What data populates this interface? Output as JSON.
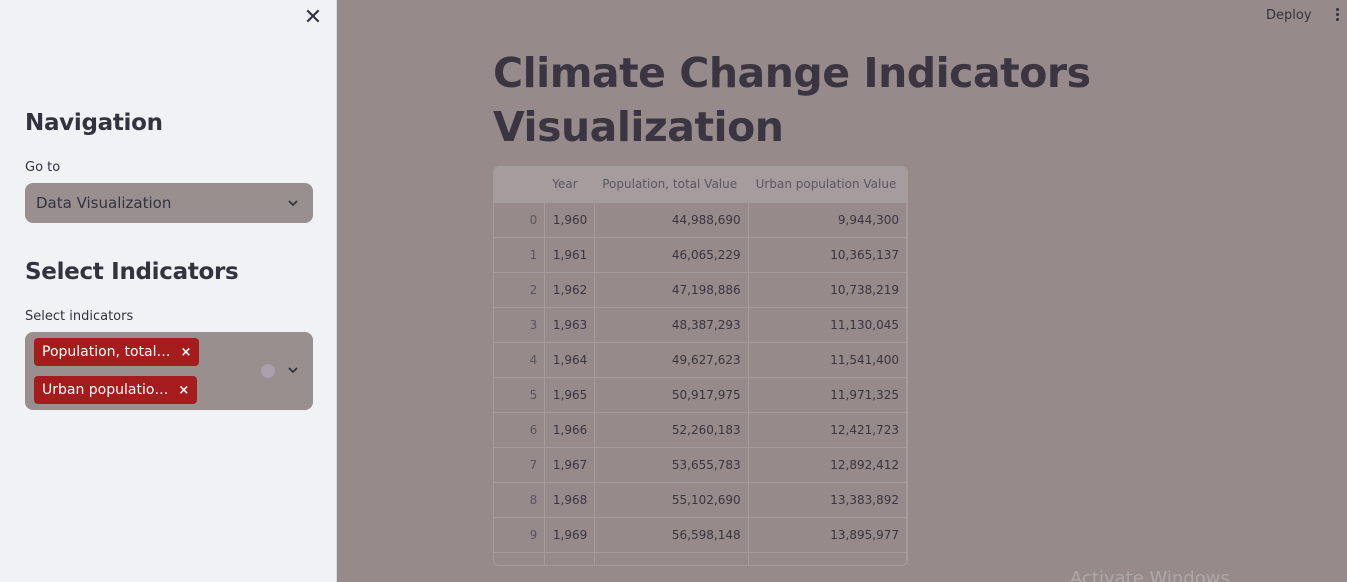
{
  "sidebar": {
    "nav_title": "Navigation",
    "goto_label": "Go to",
    "goto_value": "Data Visualization",
    "indicators_title": "Select Indicators",
    "indicators_label": "Select indicators",
    "tags": [
      "Population, total…",
      "Urban populatio…"
    ],
    "tag_remove": "×",
    "close": "✕"
  },
  "header": {
    "deploy": "Deploy"
  },
  "main": {
    "title_line1": "Climate Change Indicators",
    "title_line2": "Visualization",
    "table": {
      "columns": [
        "",
        "Year",
        "Population, total Value",
        "Urban population Value"
      ],
      "rows": [
        [
          "0",
          "1,960",
          "44,988,690",
          "9,944,300"
        ],
        [
          "1",
          "1,961",
          "46,065,229",
          "10,365,137"
        ],
        [
          "2",
          "1,962",
          "47,198,886",
          "10,738,219"
        ],
        [
          "3",
          "1,963",
          "48,387,293",
          "11,130,045"
        ],
        [
          "4",
          "1,964",
          "49,627,623",
          "11,541,400"
        ],
        [
          "5",
          "1,965",
          "50,917,975",
          "11,971,325"
        ],
        [
          "6",
          "1,966",
          "52,260,183",
          "12,421,723"
        ],
        [
          "7",
          "1,967",
          "53,655,783",
          "12,892,412"
        ],
        [
          "8",
          "1,968",
          "55,102,690",
          "13,383,892"
        ],
        [
          "9",
          "1,969",
          "56,598,148",
          "13,895,977"
        ],
        [
          "",
          "",
          "",
          ""
        ]
      ]
    }
  },
  "watermark": "Activate Windows"
}
